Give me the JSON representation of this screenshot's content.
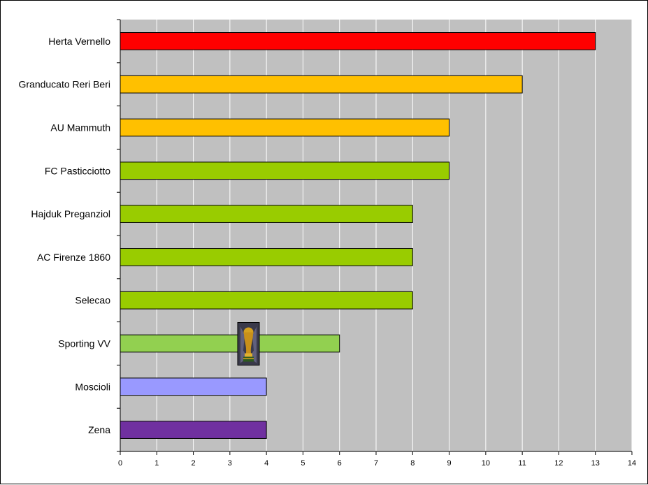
{
  "chart_data": {
    "type": "bar",
    "orientation": "horizontal",
    "title": "",
    "xlabel": "",
    "ylabel": "",
    "xlim": [
      0,
      14
    ],
    "x_ticks": [
      0,
      1,
      2,
      3,
      4,
      5,
      6,
      7,
      8,
      9,
      10,
      11,
      12,
      13,
      14
    ],
    "grid": "vertical",
    "legend": "none",
    "plot_background": "#c0c0c0",
    "categories": [
      "Herta Vernello",
      "Granducato Reri Beri",
      "AU Mammuth",
      "FC Pasticciotto",
      "Hajduk Preganziol",
      "AC Firenze 1860",
      "Selecao",
      "Sporting VV",
      "Moscioli",
      "Zena"
    ],
    "values": [
      13,
      11,
      9,
      9,
      8,
      8,
      8,
      6,
      4,
      4
    ],
    "colors": [
      "#ff0000",
      "#ffc000",
      "#ffc000",
      "#99cc00",
      "#99cc00",
      "#99cc00",
      "#99cc00",
      "#92d050",
      "#9999ff",
      "#7030a0"
    ],
    "annotations": [
      {
        "type": "image",
        "icon": "world-cup-trophy-icon",
        "category": "Sporting VV",
        "x_value": 3.5
      }
    ]
  }
}
